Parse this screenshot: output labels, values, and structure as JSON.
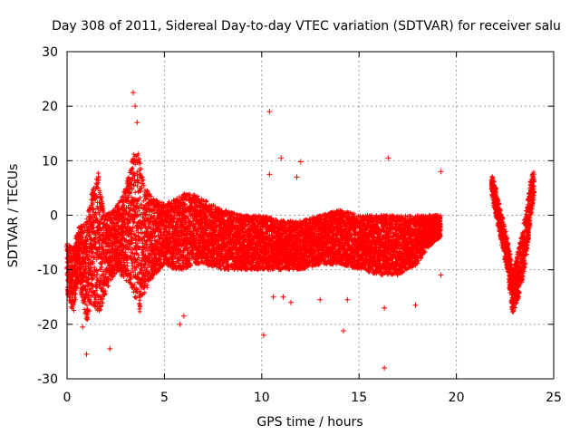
{
  "chart_data": {
    "type": "scatter",
    "title": "Day 308 of 2011, Sidereal Day-to-day VTEC variation (SDTVAR) for receiver salu",
    "xlabel": "GPS time / hours",
    "ylabel": "SDTVAR / TECUs",
    "xlim": [
      0,
      25
    ],
    "ylim": [
      -30,
      30
    ],
    "x_ticks": [
      0,
      5,
      10,
      15,
      20,
      25
    ],
    "y_ticks": [
      -30,
      -20,
      -10,
      0,
      10,
      20,
      30
    ],
    "grid": true,
    "marker": "+",
    "series_color": "#ff0000",
    "series": [
      {
        "name": "SDTVAR",
        "envelope": [
          {
            "x": 0.0,
            "low": -14,
            "high": -5
          },
          {
            "x": 0.3,
            "low": -18,
            "high": -6
          },
          {
            "x": 0.6,
            "low": -12,
            "high": -2
          },
          {
            "x": 1.0,
            "low": -20,
            "high": -1
          },
          {
            "x": 1.3,
            "low": -16,
            "high": 5
          },
          {
            "x": 1.6,
            "low": -18,
            "high": 8
          },
          {
            "x": 1.8,
            "low": -17,
            "high": 3
          },
          {
            "x": 2.0,
            "low": -14,
            "high": 0
          },
          {
            "x": 2.3,
            "low": -12,
            "high": 1
          },
          {
            "x": 2.6,
            "low": -10,
            "high": 2
          },
          {
            "x": 3.0,
            "low": -12,
            "high": 5
          },
          {
            "x": 3.4,
            "low": -14,
            "high": 11
          },
          {
            "x": 3.7,
            "low": -18,
            "high": 12
          },
          {
            "x": 4.0,
            "low": -14,
            "high": 5
          },
          {
            "x": 4.5,
            "low": -11,
            "high": 3
          },
          {
            "x": 5.0,
            "low": -9,
            "high": 2
          },
          {
            "x": 5.5,
            "low": -10,
            "high": 3
          },
          {
            "x": 6.0,
            "low": -10,
            "high": 4
          },
          {
            "x": 6.5,
            "low": -9,
            "high": 4
          },
          {
            "x": 7.0,
            "low": -9,
            "high": 3
          },
          {
            "x": 8.0,
            "low": -10,
            "high": 1
          },
          {
            "x": 9.0,
            "low": -10,
            "high": 0
          },
          {
            "x": 10.0,
            "low": -10,
            "high": 0
          },
          {
            "x": 11.0,
            "low": -10,
            "high": -1
          },
          {
            "x": 12.0,
            "low": -10,
            "high": -1
          },
          {
            "x": 13.0,
            "low": -9,
            "high": 0
          },
          {
            "x": 14.0,
            "low": -9,
            "high": 1
          },
          {
            "x": 15.0,
            "low": -10,
            "high": 0
          },
          {
            "x": 16.0,
            "low": -11,
            "high": 0
          },
          {
            "x": 17.0,
            "low": -11,
            "high": 0
          },
          {
            "x": 18.0,
            "low": -9,
            "high": 0
          },
          {
            "x": 18.5,
            "low": -6,
            "high": 0
          },
          {
            "x": 19.2,
            "low": -4,
            "high": 0
          },
          {
            "x": 21.8,
            "low": 4,
            "high": 8
          },
          {
            "x": 22.2,
            "low": -3,
            "high": 2
          },
          {
            "x": 22.6,
            "low": -10,
            "high": -4
          },
          {
            "x": 22.9,
            "low": -18,
            "high": -10
          },
          {
            "x": 23.2,
            "low": -15,
            "high": -6
          },
          {
            "x": 23.5,
            "low": -10,
            "high": -1
          },
          {
            "x": 23.8,
            "low": -2,
            "high": 6
          },
          {
            "x": 24.0,
            "low": 4,
            "high": 9
          }
        ],
        "outliers": [
          {
            "x": 3.4,
            "y": 22.5
          },
          {
            "x": 3.5,
            "y": 20
          },
          {
            "x": 3.6,
            "y": 17
          },
          {
            "x": 10.4,
            "y": 19
          },
          {
            "x": 10.4,
            "y": 7.5
          },
          {
            "x": 11.0,
            "y": 10.5
          },
          {
            "x": 12.0,
            "y": 9.8
          },
          {
            "x": 11.8,
            "y": 7
          },
          {
            "x": 16.5,
            "y": 10.5
          },
          {
            "x": 19.2,
            "y": 8
          },
          {
            "x": 2.2,
            "y": -24.5
          },
          {
            "x": 1.0,
            "y": -25.5
          },
          {
            "x": 0.8,
            "y": -20.5
          },
          {
            "x": 5.8,
            "y": -20
          },
          {
            "x": 6.0,
            "y": -18.5
          },
          {
            "x": 10.1,
            "y": -22
          },
          {
            "x": 10.6,
            "y": -15
          },
          {
            "x": 11.1,
            "y": -15
          },
          {
            "x": 11.5,
            "y": -16
          },
          {
            "x": 13.0,
            "y": -15.5
          },
          {
            "x": 14.2,
            "y": -21.2
          },
          {
            "x": 14.4,
            "y": -15.5
          },
          {
            "x": 16.3,
            "y": -28
          },
          {
            "x": 16.3,
            "y": -17
          },
          {
            "x": 17.9,
            "y": -16.5
          },
          {
            "x": 19.2,
            "y": -11
          }
        ]
      }
    ]
  }
}
